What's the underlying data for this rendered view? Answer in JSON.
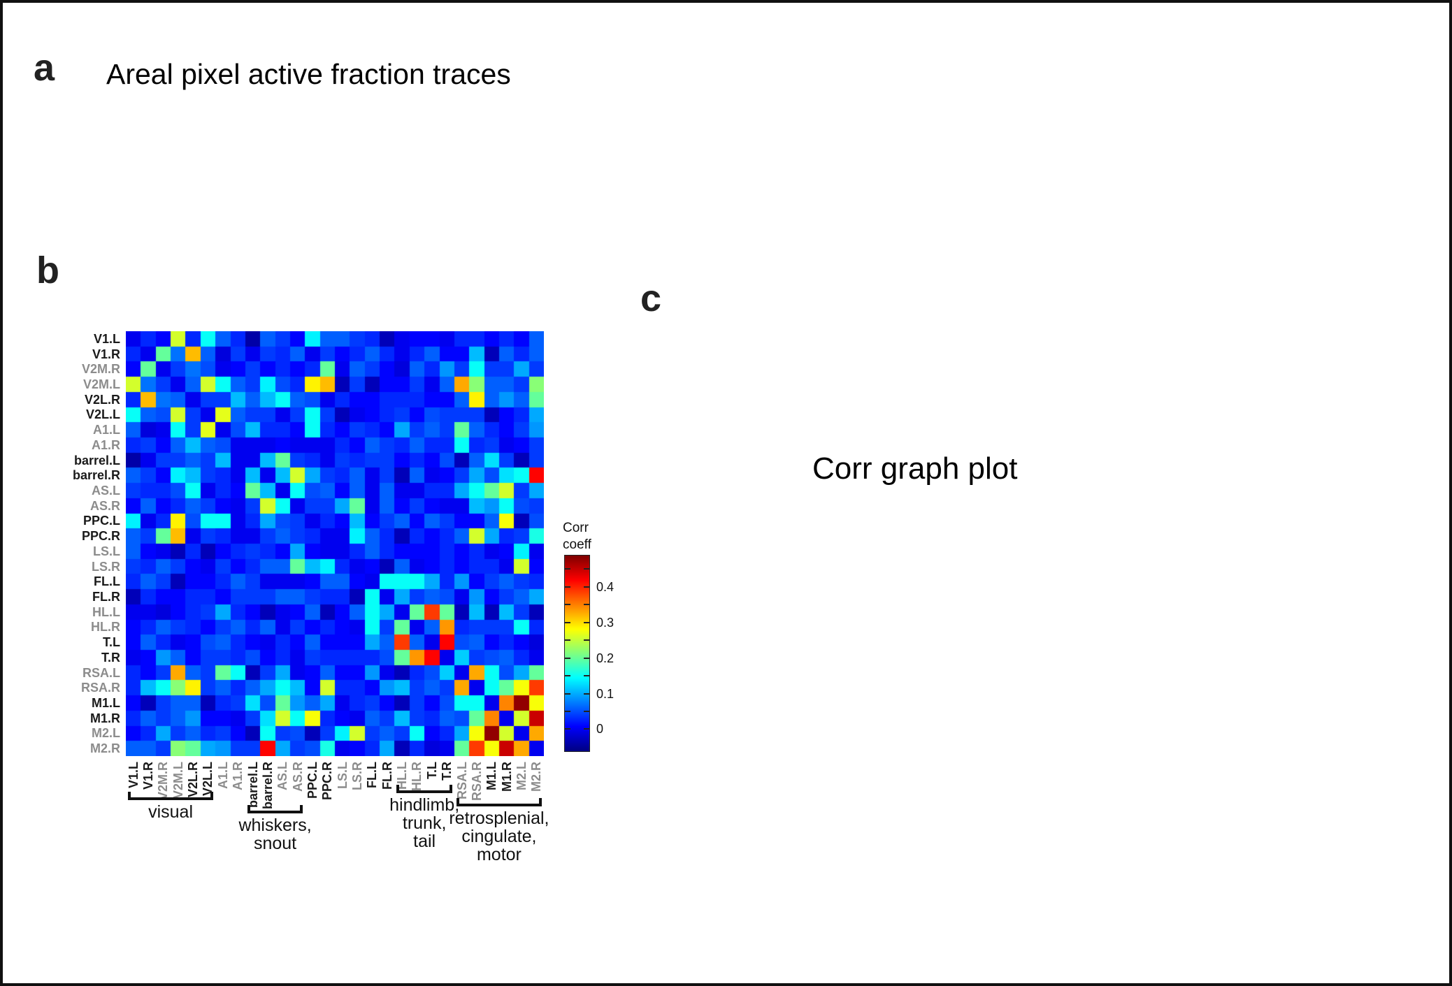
{
  "panels": {
    "a": {
      "label": "a",
      "title": "Areal pixel active fraction traces"
    },
    "b": {
      "label": "b"
    },
    "c": {
      "label": "c",
      "text": "Corr graph plot"
    }
  },
  "chart_data": {
    "type": "heatmap",
    "description": "Correlation coefficient matrix between cortical areas (28 x 28)",
    "colormap": "jet",
    "colormap_stops": [
      [
        0.0,
        "#000083"
      ],
      [
        0.125,
        "#0000ff"
      ],
      [
        0.375,
        "#00ffff"
      ],
      [
        0.625,
        "#ffff00"
      ],
      [
        0.875,
        "#ff0000"
      ],
      [
        1.0,
        "#800000"
      ]
    ],
    "vmin": -0.06,
    "vmax": 0.49,
    "colorbar": {
      "title_lines": [
        "Corr",
        "coeff"
      ],
      "tick_labels": [
        "0.4",
        "0.3",
        "0.2",
        "0.1",
        "0"
      ],
      "tick_values": [
        0.4,
        0.3,
        0.2,
        0.1,
        0
      ],
      "minor_tick_step": 0.05
    },
    "labels": [
      "V1.L",
      "V1.R",
      "V2M.R",
      "V2M.L",
      "V2L.R",
      "V2L.L",
      "A1.L",
      "A1.R",
      "barrel.L",
      "barrel.R",
      "AS.L",
      "AS.R",
      "PPC.L",
      "PPC.R",
      "LS.L",
      "LS.R",
      "FL.L",
      "FL.R",
      "HL.L",
      "HL.R",
      "T.L",
      "T.R",
      "RSA.L",
      "RSA.R",
      "M1.L",
      "M1.R",
      "M2.L",
      "M2.R"
    ],
    "label_tones": [
      "dark",
      "dark",
      "gray",
      "gray",
      "dark",
      "dark",
      "gray",
      "gray",
      "dark",
      "dark",
      "gray",
      "gray",
      "dark",
      "dark",
      "gray",
      "gray",
      "dark",
      "dark",
      "gray",
      "gray",
      "dark",
      "dark",
      "gray",
      "gray",
      "dark",
      "dark",
      "gray",
      "gray"
    ],
    "groups": [
      {
        "label_lines": [
          "visual"
        ],
        "start": 1,
        "end": 6
      },
      {
        "label_lines": [
          "whiskers,",
          "snout"
        ],
        "start": 9,
        "end": 12
      },
      {
        "label_lines": [
          "hindlimb,",
          "trunk,",
          "tail"
        ],
        "start": 19,
        "end": 22
      },
      {
        "label_lines": [
          "retrosplenial,",
          "cingulate,",
          "motor"
        ],
        "start": 23,
        "end": 28
      }
    ],
    "matrix": [
      [
        0.0,
        0.03,
        0.01,
        0.26,
        0.03,
        0.15,
        0.06,
        0.03,
        -0.04,
        0.06,
        0.04,
        0.01,
        0.14,
        0.06,
        0.06,
        0.04,
        0.03,
        -0.03,
        0.0,
        0.01,
        0.01,
        0.0,
        0.03,
        0.03,
        0.01,
        0.03,
        0.01,
        0.06
      ],
      [
        0.03,
        0.0,
        0.2,
        0.07,
        0.32,
        0.06,
        -0.01,
        0.04,
        0.0,
        0.04,
        0.03,
        0.06,
        0.0,
        0.04,
        0.01,
        0.03,
        0.06,
        0.03,
        0.0,
        0.03,
        0.06,
        0.01,
        0.01,
        0.11,
        -0.03,
        0.06,
        0.03,
        0.06
      ],
      [
        0.01,
        0.2,
        0.0,
        0.04,
        0.07,
        0.05,
        0.0,
        0.01,
        0.04,
        0.01,
        0.03,
        0.01,
        0.03,
        0.2,
        0.0,
        0.06,
        0.04,
        0.01,
        -0.01,
        0.06,
        0.03,
        0.09,
        0.04,
        0.15,
        0.04,
        0.04,
        0.1,
        0.04
      ],
      [
        0.26,
        0.07,
        0.04,
        0.0,
        0.06,
        0.26,
        0.15,
        0.06,
        0.04,
        0.14,
        0.05,
        0.03,
        0.29,
        0.32,
        -0.03,
        0.04,
        -0.03,
        0.01,
        0.01,
        0.04,
        0.0,
        0.06,
        0.33,
        0.22,
        0.06,
        0.06,
        0.04,
        0.22
      ],
      [
        0.03,
        0.32,
        0.07,
        0.06,
        0.0,
        0.04,
        0.04,
        0.11,
        0.06,
        0.11,
        0.15,
        0.06,
        0.05,
        0.0,
        0.03,
        0.01,
        0.01,
        0.03,
        0.03,
        0.03,
        0.01,
        0.01,
        0.06,
        0.29,
        0.06,
        0.09,
        0.06,
        0.2
      ],
      [
        0.15,
        0.06,
        0.05,
        0.26,
        0.04,
        0.0,
        0.27,
        0.06,
        0.04,
        0.04,
        0.0,
        0.04,
        0.15,
        0.04,
        -0.03,
        0.0,
        0.01,
        0.03,
        0.04,
        0.01,
        0.05,
        0.04,
        0.04,
        0.04,
        -0.03,
        0.01,
        0.03,
        0.1
      ],
      [
        0.06,
        -0.01,
        0.0,
        0.15,
        0.04,
        0.27,
        0.0,
        0.05,
        0.11,
        0.03,
        0.03,
        0.01,
        0.15,
        0.03,
        0.01,
        0.04,
        0.03,
        0.01,
        0.1,
        0.04,
        0.06,
        0.04,
        0.2,
        0.06,
        0.03,
        0.01,
        0.04,
        0.09
      ],
      [
        0.03,
        0.04,
        0.01,
        0.06,
        0.11,
        0.06,
        0.05,
        0.0,
        0.0,
        0.0,
        0.01,
        0.0,
        0.0,
        0.0,
        0.03,
        0.01,
        0.06,
        0.04,
        0.03,
        0.06,
        0.03,
        0.03,
        0.15,
        0.03,
        0.04,
        0.0,
        0.01,
        0.04
      ],
      [
        -0.04,
        0.0,
        0.04,
        0.04,
        0.06,
        0.04,
        0.11,
        0.0,
        0.0,
        0.11,
        0.2,
        0.04,
        0.03,
        0.0,
        0.04,
        0.03,
        0.04,
        0.04,
        0.01,
        0.03,
        0.01,
        0.05,
        -0.03,
        0.06,
        0.13,
        0.04,
        -0.03,
        0.04
      ],
      [
        0.06,
        0.04,
        0.01,
        0.14,
        0.11,
        0.04,
        0.03,
        0.0,
        0.11,
        0.0,
        0.11,
        0.26,
        0.1,
        0.04,
        0.03,
        0.06,
        0.0,
        0.04,
        -0.03,
        0.06,
        0.0,
        0.01,
        0.04,
        0.1,
        0.05,
        0.13,
        0.15,
        0.42
      ],
      [
        0.04,
        0.03,
        0.03,
        0.05,
        0.15,
        0.0,
        0.03,
        0.01,
        0.2,
        0.11,
        0.0,
        0.15,
        0.05,
        0.06,
        0.01,
        0.06,
        0.0,
        0.06,
        0.0,
        0.0,
        0.03,
        0.03,
        0.1,
        0.15,
        0.2,
        0.26,
        0.04,
        0.1
      ],
      [
        0.01,
        0.06,
        0.01,
        0.03,
        0.06,
        0.04,
        0.01,
        0.0,
        0.04,
        0.26,
        0.15,
        0.0,
        0.04,
        0.04,
        0.1,
        0.2,
        0.0,
        0.06,
        0.01,
        0.04,
        0.01,
        0.0,
        0.0,
        0.11,
        0.09,
        0.15,
        0.05,
        0.04
      ],
      [
        0.14,
        0.0,
        0.03,
        0.29,
        0.05,
        0.15,
        0.15,
        0.0,
        0.03,
        0.1,
        0.05,
        0.04,
        0.0,
        0.03,
        0.01,
        0.11,
        0.01,
        0.04,
        0.06,
        0.01,
        0.06,
        0.04,
        0.01,
        0.01,
        0.06,
        0.28,
        -0.03,
        0.05
      ],
      [
        0.06,
        0.04,
        0.2,
        0.32,
        0.0,
        0.04,
        0.03,
        0.0,
        0.0,
        0.04,
        0.06,
        0.04,
        0.03,
        0.0,
        0.0,
        0.14,
        0.06,
        0.03,
        -0.03,
        0.03,
        0.01,
        0.03,
        0.06,
        0.26,
        0.1,
        0.03,
        0.04,
        0.16
      ],
      [
        0.06,
        0.01,
        0.0,
        -0.03,
        0.03,
        -0.03,
        0.01,
        0.03,
        0.04,
        0.03,
        0.01,
        0.1,
        0.01,
        0.0,
        0.0,
        0.03,
        0.06,
        0.03,
        0.01,
        0.01,
        0.01,
        0.03,
        0.01,
        0.03,
        0.0,
        0.01,
        0.14,
        0.0
      ],
      [
        0.04,
        0.03,
        0.06,
        0.04,
        0.01,
        0.0,
        0.04,
        0.01,
        0.03,
        0.06,
        0.06,
        0.2,
        0.11,
        0.14,
        0.03,
        0.0,
        0.01,
        -0.03,
        0.06,
        0.0,
        0.01,
        0.03,
        0.01,
        0.03,
        0.03,
        0.0,
        0.26,
        0.01
      ],
      [
        0.03,
        0.06,
        0.04,
        -0.03,
        0.01,
        0.01,
        0.03,
        0.06,
        0.04,
        0.0,
        0.0,
        0.0,
        0.01,
        0.06,
        0.06,
        0.01,
        0.0,
        0.15,
        0.15,
        0.15,
        0.1,
        0.03,
        0.09,
        0.01,
        0.04,
        0.06,
        0.04,
        0.03
      ],
      [
        -0.03,
        0.03,
        0.01,
        0.01,
        0.03,
        0.03,
        0.01,
        0.04,
        0.04,
        0.04,
        0.06,
        0.06,
        0.04,
        0.03,
        0.03,
        -0.03,
        0.15,
        0.0,
        0.1,
        0.04,
        0.06,
        0.05,
        0.0,
        0.09,
        0.01,
        0.04,
        0.06,
        0.1
      ],
      [
        0.0,
        0.0,
        -0.01,
        0.01,
        0.03,
        0.04,
        0.1,
        0.03,
        0.01,
        -0.03,
        0.0,
        0.01,
        0.06,
        -0.03,
        0.01,
        0.06,
        0.15,
        0.1,
        0.0,
        0.2,
        0.39,
        0.2,
        -0.03,
        0.11,
        -0.03,
        0.11,
        0.04,
        -0.03
      ],
      [
        0.01,
        0.03,
        0.06,
        0.04,
        0.03,
        0.01,
        0.04,
        0.06,
        0.03,
        0.06,
        0.0,
        0.04,
        0.01,
        0.03,
        0.01,
        0.0,
        0.15,
        0.04,
        0.2,
        0.0,
        0.06,
        0.34,
        0.03,
        0.04,
        0.04,
        0.04,
        0.15,
        0.03
      ],
      [
        0.01,
        0.06,
        0.03,
        0.0,
        0.01,
        0.05,
        0.06,
        0.03,
        0.01,
        0.0,
        0.03,
        0.01,
        0.06,
        0.01,
        0.01,
        0.01,
        0.1,
        0.06,
        0.39,
        0.06,
        0.0,
        0.42,
        0.05,
        0.06,
        0.01,
        0.03,
        0.01,
        -0.01
      ],
      [
        0.0,
        0.01,
        0.09,
        0.06,
        0.01,
        0.04,
        0.04,
        0.03,
        0.05,
        0.01,
        0.03,
        0.0,
        0.04,
        0.03,
        0.03,
        0.03,
        0.03,
        0.05,
        0.2,
        0.34,
        0.42,
        0.0,
        0.12,
        0.04,
        0.05,
        0.06,
        0.03,
        0.0
      ],
      [
        0.03,
        0.01,
        0.04,
        0.33,
        0.06,
        0.04,
        0.2,
        0.15,
        -0.03,
        0.04,
        0.1,
        0.0,
        0.01,
        0.06,
        0.01,
        0.01,
        0.09,
        0.0,
        -0.03,
        0.03,
        0.05,
        0.12,
        0.0,
        0.33,
        0.15,
        0.05,
        0.1,
        0.2
      ],
      [
        0.03,
        0.11,
        0.15,
        0.22,
        0.29,
        0.04,
        0.06,
        0.03,
        0.06,
        0.1,
        0.15,
        0.11,
        0.01,
        0.26,
        0.03,
        0.03,
        0.01,
        0.09,
        0.11,
        0.04,
        0.06,
        0.04,
        0.33,
        0.0,
        0.15,
        0.2,
        0.28,
        0.39
      ],
      [
        0.01,
        -0.03,
        0.04,
        0.06,
        0.06,
        -0.03,
        0.03,
        0.04,
        0.13,
        0.05,
        0.2,
        0.09,
        0.06,
        0.1,
        0.0,
        0.03,
        0.04,
        0.01,
        -0.03,
        0.04,
        0.01,
        0.05,
        0.15,
        0.15,
        0.0,
        0.35,
        0.48,
        0.28
      ],
      [
        0.03,
        0.06,
        0.04,
        0.06,
        0.09,
        0.01,
        0.01,
        0.0,
        0.04,
        0.13,
        0.26,
        0.15,
        0.28,
        0.03,
        0.01,
        0.0,
        0.06,
        0.04,
        0.11,
        0.04,
        0.03,
        0.06,
        0.05,
        0.2,
        0.35,
        0.0,
        0.26,
        0.45
      ],
      [
        0.01,
        0.03,
        0.1,
        0.04,
        0.06,
        0.03,
        0.04,
        0.01,
        -0.03,
        0.15,
        0.04,
        0.05,
        -0.03,
        0.04,
        0.14,
        0.26,
        0.04,
        0.06,
        0.04,
        0.15,
        0.01,
        0.03,
        0.1,
        0.28,
        0.48,
        0.26,
        0.0,
        0.33
      ],
      [
        0.06,
        0.06,
        0.04,
        0.22,
        0.2,
        0.1,
        0.09,
        0.04,
        0.04,
        0.42,
        0.1,
        0.04,
        0.05,
        0.16,
        0.0,
        0.01,
        0.03,
        0.1,
        -0.03,
        0.03,
        -0.01,
        0.0,
        0.2,
        0.39,
        0.28,
        0.45,
        0.33,
        0.0
      ]
    ]
  }
}
